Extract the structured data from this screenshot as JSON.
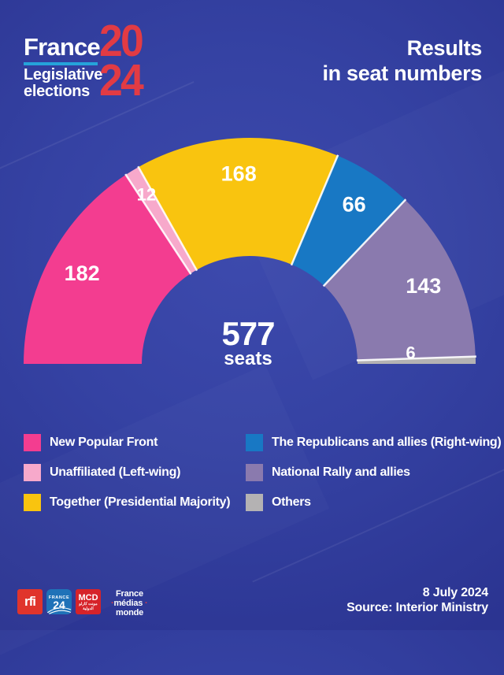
{
  "brand": {
    "name": "France",
    "year_top": "20",
    "year_bottom": "24",
    "tagline_line1": "Legislative",
    "tagline_line2": "elections",
    "underline_color": "#25A3DA",
    "year_color": "#E23B44"
  },
  "title": {
    "line1": "Results",
    "line2": "in seat numbers"
  },
  "chart_data": {
    "type": "half-donut",
    "title": "Results in seat numbers",
    "total": 577,
    "center_label": "577",
    "center_sublabel": "seats",
    "start_angle_deg": 180,
    "end_angle_deg": 0,
    "legend_position": "bottom, two columns (3 left, 3 right)",
    "series": [
      {
        "name": "New Popular Front",
        "value": 182,
        "color": "#F33D90"
      },
      {
        "name": "Unaffiliated (Left-wing)",
        "value": 12,
        "color": "#F7A9CB"
      },
      {
        "name": "Together (Presidential Majority)",
        "value": 168,
        "color": "#F9C40F"
      },
      {
        "name": "The Republicans and allies (Right-wing)",
        "value": 66,
        "color": "#1878C4"
      },
      {
        "name": "National Rally and allies",
        "value": 143,
        "color": "#8A7AAE"
      },
      {
        "name": "Others",
        "value": 6,
        "color": "#B4B2B3"
      }
    ]
  },
  "footer": {
    "date": "8 July 2024",
    "source": "Source: Interior Ministry",
    "logos": {
      "rfi": {
        "label": "rfi",
        "bg": "#E0342C"
      },
      "france24": {
        "label_top": "FRANCE",
        "label_num": "24",
        "bg": "#1F72B8"
      },
      "mcd": {
        "label": "MCD",
        "arabic_line1": "مونت كارلو",
        "arabic_line2": "الدولية",
        "bg": "#D6232A"
      },
      "fmm": {
        "line1": "France",
        "line2": "médias",
        "line3": "monde"
      }
    }
  }
}
